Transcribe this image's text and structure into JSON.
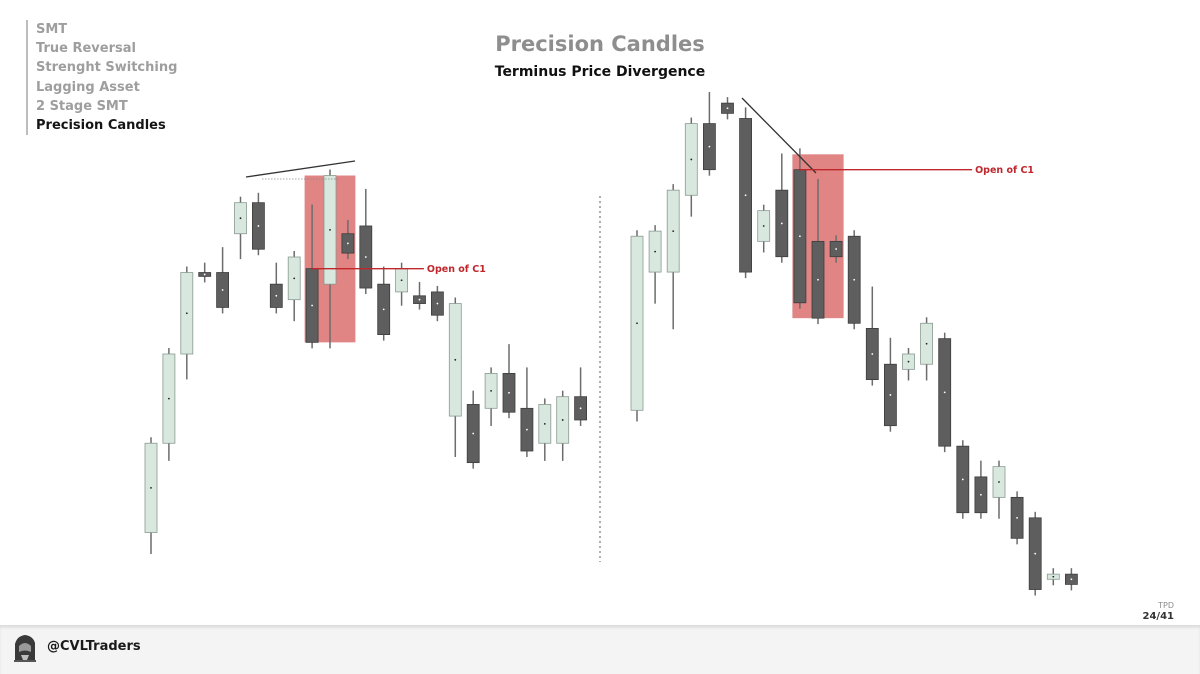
{
  "toc": {
    "items": [
      {
        "label": "SMT",
        "active": false
      },
      {
        "label": "True Reversal",
        "active": false
      },
      {
        "label": "Strenght Switching",
        "active": false
      },
      {
        "label": "Lagging Asset",
        "active": false
      },
      {
        "label": "2 Stage SMT",
        "active": false
      },
      {
        "label": "Precision Candles",
        "active": true
      }
    ]
  },
  "header": {
    "title": "Precision Candles",
    "subtitle": "Terminus Price Divergence"
  },
  "colors": {
    "bull": "#d8e8df",
    "bull_border": "#8a9a90",
    "bear": "#5e5e5e",
    "wick": "#6c6c6c",
    "highlight": "#dc6e6e",
    "level_line": "#c0272d",
    "divider": "#9a9a9a",
    "trend_line": "#333333"
  },
  "chart_data": [
    {
      "type": "candlestick",
      "id": "bullish-example",
      "annotation": "Open of C1",
      "ylim": [
        0,
        100
      ],
      "candles": [
        {
          "o": 4,
          "h": 0,
          "l": 27
        },
        {
          "o": 27,
          "h": 24,
          "l": 50
        },
        {
          "o": 50,
          "h": 45,
          "l": 71
        },
        {
          "o": 71,
          "h": 70,
          "l": 72
        },
        {
          "o": 71,
          "h": 62,
          "l": 76
        },
        {
          "o": 81,
          "h": 76,
          "l": 89
        },
        {
          "o": 89,
          "h": 77,
          "l": 90
        },
        {
          "o": 68,
          "h": 62,
          "l": 72
        },
        {
          "o": 64,
          "h": 60,
          "l": 75
        },
        {
          "o": 72,
          "h": 53,
          "l": 87
        },
        {
          "o": 68,
          "h": 53,
          "l": 96
        },
        {
          "o": 81,
          "h": 76,
          "l": 83
        },
        {
          "o": 83,
          "h": 67,
          "l": 91
        },
        {
          "o": 68,
          "h": 55,
          "l": 71
        },
        {
          "o": 66,
          "h": 64,
          "l": 72
        },
        {
          "o": 65,
          "h": 63,
          "l": 67
        },
        {
          "o": 66,
          "h": 60,
          "l": 66
        },
        {
          "o": 34,
          "h": 25,
          "l": 63
        },
        {
          "o": 37,
          "h": 22,
          "l": 39
        },
        {
          "o": 36,
          "h": 33,
          "l": 45
        },
        {
          "o": 45,
          "h": 35,
          "l": 51
        },
        {
          "o": 36,
          "h": 25,
          "l": 45
        },
        {
          "o": 27,
          "h": 24,
          "l": 37
        },
        {
          "o": 27,
          "h": 24,
          "l": 39
        },
        {
          "o": 39,
          "h": 33,
          "l": 45
        }
      ],
      "highlight_range": [
        9,
        11
      ],
      "open_level": 72
    },
    {
      "type": "candlestick",
      "id": "bearish-example",
      "annotation": "Open of C1",
      "ylim": [
        0,
        100
      ],
      "candles": [
        {
          "o": 39,
          "h": 38,
          "l": 73
        },
        {
          "o": 66,
          "h": 61,
          "l": 74
        },
        {
          "o": 66,
          "h": 56,
          "l": 82
        },
        {
          "o": 81,
          "h": 78,
          "l": 95
        },
        {
          "o": 95,
          "h": 86,
          "l": 100
        },
        {
          "o": 99,
          "h": 97,
          "l": 99
        },
        {
          "o": 96,
          "h": 66,
          "l": 97
        },
        {
          "o": 72,
          "h": 71,
          "l": 78
        },
        {
          "o": 82,
          "h": 69,
          "l": 88
        },
        {
          "o": 86,
          "h": 60,
          "l": 89
        },
        {
          "o": 72,
          "h": 57,
          "l": 83
        },
        {
          "o": 72,
          "h": 69,
          "l": 72
        },
        {
          "o": 73,
          "h": 56,
          "l": 73
        },
        {
          "o": 55,
          "h": 45,
          "l": 62
        },
        {
          "o": 48,
          "h": 36,
          "l": 52
        },
        {
          "o": 47,
          "h": 46,
          "l": 50
        },
        {
          "o": 48,
          "h": 46,
          "l": 56
        },
        {
          "o": 53,
          "h": 32,
          "l": 53
        },
        {
          "o": 32,
          "h": 19,
          "l": 32
        },
        {
          "o": 26,
          "h": 19,
          "l": 28
        },
        {
          "o": 22,
          "h": 19,
          "l": 28
        },
        {
          "o": 22,
          "h": 14,
          "l": 22
        },
        {
          "o": 18,
          "h": 4,
          "l": 18
        },
        {
          "o": 6,
          "h": 6,
          "l": 7
        },
        {
          "o": 7,
          "h": 5,
          "l": 7
        }
      ],
      "highlight_range": [
        9,
        11
      ],
      "open_level": 86
    }
  ],
  "footer": {
    "handle": "@CVLTraders",
    "page_tag": "TPD",
    "page_num": "24/41"
  }
}
